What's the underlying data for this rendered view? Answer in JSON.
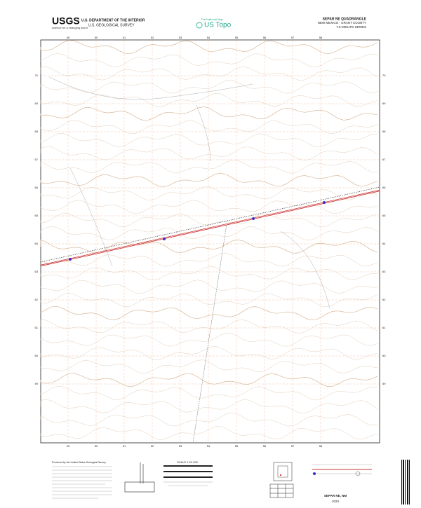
{
  "header": {
    "agency": "USGS",
    "agency_tagline": "science for a changing world",
    "department": "U.S. DEPARTMENT OF THE INTERIOR",
    "survey": "U.S. GEOLOGICAL SURVEY",
    "product_tagline": "The National Map",
    "product": "US Topo",
    "quadrangle": "SEPAR NE QUADRANGLE",
    "state_county": "NEW MEXICO - GRANT COUNTY",
    "series": "7.5-MINUTE SERIES"
  },
  "map": {
    "eastings": [
      "49",
      "50",
      "51",
      "52",
      "53",
      "54",
      "55",
      "56",
      "57",
      "58"
    ],
    "northings": [
      "70",
      "69",
      "68",
      "67",
      "66",
      "65",
      "64",
      "63",
      "62",
      "61",
      "60",
      "59"
    ]
  },
  "footer": {
    "producer": "Produced by the United States Geological Survey",
    "scale": "SCALE 1:24 000",
    "title": "SEPAR NE, NM",
    "year": "2023"
  }
}
